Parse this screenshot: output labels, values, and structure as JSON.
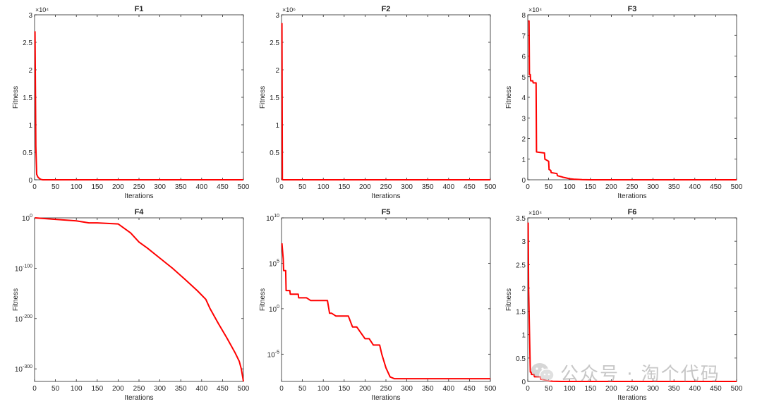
{
  "chart_data": [
    {
      "type": "line",
      "title": "F1",
      "xlabel": "Iterations",
      "ylabel": "Fitness",
      "yscale": "linear",
      "xlim": [
        0,
        500
      ],
      "ylim": [
        0,
        3
      ],
      "exponent": "×10⁴",
      "xticks": [
        "0",
        "50",
        "100",
        "150",
        "200",
        "250",
        "300",
        "350",
        "400",
        "450",
        "500"
      ],
      "yticks": [
        "0",
        "0.5",
        "1",
        "1.5",
        "2",
        "2.5",
        "3"
      ],
      "series": [
        {
          "name": "F1",
          "color": "#ff0000",
          "x": [
            1,
            2,
            3,
            5,
            8,
            12,
            16,
            20,
            30,
            500
          ],
          "y": [
            2.7,
            1.7,
            0.6,
            0.1,
            0.05,
            0.02,
            0.005,
            0,
            0,
            0
          ]
        }
      ]
    },
    {
      "type": "line",
      "title": "F2",
      "xlabel": "Iterations",
      "ylabel": "Fitness",
      "yscale": "linear",
      "xlim": [
        0,
        500
      ],
      "ylim": [
        0,
        3
      ],
      "exponent": "×10⁶",
      "xticks": [
        "0",
        "50",
        "100",
        "150",
        "200",
        "250",
        "300",
        "350",
        "400",
        "450",
        "500"
      ],
      "yticks": [
        "0",
        "0.5",
        "1",
        "1.5",
        "2",
        "2.5",
        "3"
      ],
      "series": [
        {
          "name": "F2",
          "color": "#ff0000",
          "x": [
            1,
            2,
            3,
            4,
            500
          ],
          "y": [
            2.85,
            0.01,
            0,
            0,
            0
          ]
        }
      ]
    },
    {
      "type": "line",
      "title": "F3",
      "xlabel": "Iterations",
      "ylabel": "Fitness",
      "yscale": "linear",
      "xlim": [
        0,
        500
      ],
      "ylim": [
        0,
        8
      ],
      "exponent": "×10⁴",
      "xticks": [
        "0",
        "50",
        "100",
        "150",
        "200",
        "250",
        "300",
        "350",
        "400",
        "450",
        "500"
      ],
      "yticks": [
        "0",
        "1",
        "2",
        "3",
        "4",
        "5",
        "6",
        "7",
        "8"
      ],
      "series": [
        {
          "name": "F3",
          "color": "#ff0000",
          "x": [
            1,
            3,
            4,
            6,
            7,
            12,
            13,
            20,
            21,
            40,
            41,
            50,
            51,
            55,
            56,
            70,
            71,
            80,
            85,
            90,
            100,
            110,
            130,
            150,
            500
          ],
          "y": [
            7.7,
            7.7,
            5.1,
            5.1,
            4.8,
            4.8,
            4.7,
            4.7,
            1.35,
            1.3,
            1.0,
            0.9,
            0.5,
            0.45,
            0.35,
            0.3,
            0.2,
            0.15,
            0.12,
            0.1,
            0.05,
            0.03,
            0.01,
            0,
            0
          ]
        }
      ]
    },
    {
      "type": "line",
      "title": "F4",
      "xlabel": "Iterations",
      "ylabel": "Fitness",
      "yscale": "log",
      "xlim": [
        0,
        500
      ],
      "ylim": [
        -325,
        0
      ],
      "xticks": [
        "0",
        "50",
        "100",
        "150",
        "200",
        "250",
        "300",
        "350",
        "400",
        "450",
        "500"
      ],
      "yticks": [
        "10^0",
        "10^-100",
        "10^-200",
        "10^-300"
      ],
      "ytick_values": [
        0,
        -100,
        -200,
        -300
      ],
      "series": [
        {
          "name": "F4",
          "color": "#ff0000",
          "x": [
            1,
            50,
            100,
            130,
            150,
            200,
            210,
            230,
            250,
            270,
            300,
            330,
            360,
            390,
            410,
            420,
            440,
            460,
            480,
            490,
            495,
            500
          ],
          "y": [
            0,
            -3,
            -6,
            -10,
            -10,
            -12,
            -18,
            -30,
            -48,
            -60,
            -80,
            -100,
            -122,
            -145,
            -162,
            -180,
            -210,
            -238,
            -268,
            -285,
            -300,
            -325
          ]
        }
      ]
    },
    {
      "type": "line",
      "title": "F5",
      "xlabel": "Iterations",
      "ylabel": "Fitness",
      "yscale": "log",
      "xlim": [
        0,
        500
      ],
      "ylim": [
        -8,
        10
      ],
      "xticks": [
        "0",
        "50",
        "100",
        "150",
        "200",
        "250",
        "300",
        "350",
        "400",
        "450",
        "500"
      ],
      "yticks": [
        "10^10",
        "10^5",
        "10^0",
        "10^-5"
      ],
      "ytick_values": [
        10,
        5,
        0,
        -5
      ],
      "series": [
        {
          "name": "F5",
          "color": "#ff0000",
          "x": [
            1,
            4,
            5,
            10,
            11,
            20,
            21,
            40,
            41,
            60,
            70,
            110,
            115,
            120,
            130,
            160,
            170,
            180,
            200,
            210,
            220,
            235,
            240,
            250,
            260,
            270,
            500
          ],
          "y": [
            7.2,
            5.5,
            4.2,
            4.2,
            2.0,
            2.0,
            1.6,
            1.6,
            1.2,
            1.2,
            0.9,
            0.9,
            -0.5,
            -0.5,
            -0.8,
            -0.8,
            -2.0,
            -2.0,
            -3.3,
            -3.3,
            -4.0,
            -4.0,
            -5.0,
            -6.5,
            -7.5,
            -7.7,
            -7.7
          ]
        }
      ]
    },
    {
      "type": "line",
      "title": "F6",
      "xlabel": "Iterations",
      "ylabel": "Fitness",
      "yscale": "linear",
      "xlim": [
        0,
        500
      ],
      "ylim": [
        0,
        3.5
      ],
      "exponent": "×10⁴",
      "xticks": [
        "0",
        "50",
        "100",
        "150",
        "200",
        "250",
        "300",
        "350",
        "400",
        "450",
        "500"
      ],
      "yticks": [
        "0",
        "0.5",
        "1",
        "1.5",
        "2",
        "2.5",
        "3",
        "3.5"
      ],
      "series": [
        {
          "name": "F6",
          "color": "#ff0000",
          "x": [
            1,
            2,
            4,
            6,
            8,
            9,
            15,
            16,
            30,
            31,
            35,
            40,
            45,
            50,
            60,
            80,
            500
          ],
          "y": [
            3.4,
            2.0,
            1.1,
            0.2,
            0.2,
            0.15,
            0.15,
            0.1,
            0.1,
            0.05,
            0.04,
            0.03,
            0.02,
            0.01,
            0.005,
            0,
            0
          ]
        }
      ]
    }
  ],
  "watermark": {
    "text": "公众号 · 淘个代码",
    "icon": "wechat-icon"
  }
}
